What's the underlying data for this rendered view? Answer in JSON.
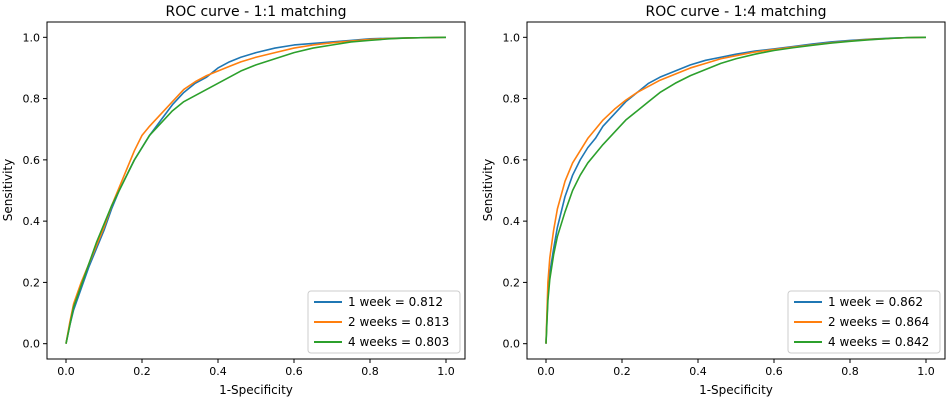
{
  "chart_data": [
    {
      "type": "line",
      "title": "ROC curve - 1:1 matching",
      "xlabel": "1-Specificity",
      "ylabel": "Sensitivity",
      "xlim": [
        -0.05,
        1.05
      ],
      "ylim": [
        -0.05,
        1.05
      ],
      "xticks": [
        0.0,
        0.2,
        0.4,
        0.6,
        0.8,
        1.0
      ],
      "xtick_labels": [
        "0.0",
        "0.2",
        "0.4",
        "0.6",
        "0.8",
        "1.0"
      ],
      "yticks": [
        0.0,
        0.2,
        0.4,
        0.6,
        0.8,
        1.0
      ],
      "ytick_labels": [
        "0.0",
        "0.2",
        "0.4",
        "0.6",
        "0.8",
        "1.0"
      ],
      "grid": false,
      "legend_position": "lower-right",
      "series": [
        {
          "name": "1 week = 0.812",
          "color": "#1f77b4",
          "x": [
            0,
            0.01,
            0.02,
            0.04,
            0.06,
            0.08,
            0.1,
            0.12,
            0.14,
            0.16,
            0.18,
            0.2,
            0.22,
            0.25,
            0.28,
            0.31,
            0.34,
            0.37,
            0.4,
            0.43,
            0.46,
            0.5,
            0.55,
            0.6,
            0.65,
            0.7,
            0.75,
            0.8,
            0.85,
            0.9,
            0.95,
            1.0
          ],
          "y": [
            0,
            0.06,
            0.11,
            0.18,
            0.25,
            0.31,
            0.37,
            0.44,
            0.5,
            0.55,
            0.6,
            0.64,
            0.68,
            0.73,
            0.78,
            0.82,
            0.85,
            0.87,
            0.9,
            0.92,
            0.935,
            0.95,
            0.965,
            0.975,
            0.98,
            0.985,
            0.99,
            0.995,
            0.997,
            0.998,
            0.999,
            1.0
          ]
        },
        {
          "name": "2 weeks = 0.813",
          "color": "#ff7f0e",
          "x": [
            0,
            0.01,
            0.02,
            0.04,
            0.06,
            0.08,
            0.1,
            0.12,
            0.14,
            0.16,
            0.18,
            0.2,
            0.22,
            0.25,
            0.28,
            0.31,
            0.34,
            0.37,
            0.4,
            0.43,
            0.46,
            0.5,
            0.55,
            0.6,
            0.65,
            0.7,
            0.75,
            0.8,
            0.85,
            0.9,
            0.95,
            1.0
          ],
          "y": [
            0,
            0.07,
            0.13,
            0.2,
            0.26,
            0.32,
            0.38,
            0.45,
            0.51,
            0.57,
            0.63,
            0.68,
            0.71,
            0.75,
            0.79,
            0.83,
            0.855,
            0.875,
            0.89,
            0.905,
            0.92,
            0.935,
            0.95,
            0.965,
            0.975,
            0.982,
            0.988,
            0.993,
            0.996,
            0.998,
            0.999,
            1.0
          ]
        },
        {
          "name": "4 weeks = 0.803",
          "color": "#2ca02c",
          "x": [
            0,
            0.01,
            0.02,
            0.04,
            0.06,
            0.08,
            0.1,
            0.12,
            0.14,
            0.16,
            0.18,
            0.2,
            0.22,
            0.25,
            0.28,
            0.31,
            0.34,
            0.37,
            0.4,
            0.43,
            0.46,
            0.5,
            0.55,
            0.6,
            0.65,
            0.7,
            0.75,
            0.8,
            0.85,
            0.9,
            0.95,
            1.0
          ],
          "y": [
            0,
            0.06,
            0.12,
            0.19,
            0.26,
            0.33,
            0.39,
            0.45,
            0.5,
            0.55,
            0.6,
            0.64,
            0.68,
            0.72,
            0.76,
            0.79,
            0.81,
            0.83,
            0.85,
            0.87,
            0.89,
            0.91,
            0.93,
            0.95,
            0.965,
            0.975,
            0.985,
            0.99,
            0.995,
            0.998,
            0.999,
            1.0
          ]
        }
      ]
    },
    {
      "type": "line",
      "title": "ROC curve - 1:4 matching",
      "xlabel": "1-Specificity",
      "ylabel": "Sensitivity",
      "xlim": [
        -0.05,
        1.05
      ],
      "ylim": [
        -0.05,
        1.05
      ],
      "xticks": [
        0.0,
        0.2,
        0.4,
        0.6,
        0.8,
        1.0
      ],
      "xtick_labels": [
        "0.0",
        "0.2",
        "0.4",
        "0.6",
        "0.8",
        "1.0"
      ],
      "yticks": [
        0.0,
        0.2,
        0.4,
        0.6,
        0.8,
        1.0
      ],
      "ytick_labels": [
        "0.0",
        "0.2",
        "0.4",
        "0.6",
        "0.8",
        "1.0"
      ],
      "grid": false,
      "legend_position": "lower-right",
      "series": [
        {
          "name": "1 week = 0.862",
          "color": "#1f77b4",
          "x": [
            0,
            0.005,
            0.01,
            0.02,
            0.03,
            0.05,
            0.07,
            0.09,
            0.11,
            0.13,
            0.15,
            0.18,
            0.21,
            0.24,
            0.27,
            0.3,
            0.34,
            0.38,
            0.42,
            0.46,
            0.5,
            0.55,
            0.6,
            0.65,
            0.7,
            0.75,
            0.8,
            0.85,
            0.9,
            0.95,
            1.0
          ],
          "y": [
            0,
            0.16,
            0.23,
            0.31,
            0.38,
            0.48,
            0.55,
            0.6,
            0.64,
            0.67,
            0.71,
            0.75,
            0.79,
            0.82,
            0.85,
            0.87,
            0.89,
            0.91,
            0.925,
            0.935,
            0.945,
            0.955,
            0.962,
            0.97,
            0.978,
            0.985,
            0.99,
            0.994,
            0.997,
            0.999,
            1.0
          ]
        },
        {
          "name": "2 weeks = 0.864",
          "color": "#ff7f0e",
          "x": [
            0,
            0.005,
            0.01,
            0.02,
            0.03,
            0.05,
            0.07,
            0.09,
            0.11,
            0.13,
            0.15,
            0.18,
            0.21,
            0.24,
            0.27,
            0.3,
            0.34,
            0.38,
            0.42,
            0.46,
            0.5,
            0.55,
            0.6,
            0.65,
            0.7,
            0.75,
            0.8,
            0.85,
            0.9,
            0.95,
            1.0
          ],
          "y": [
            0,
            0.2,
            0.28,
            0.37,
            0.44,
            0.53,
            0.59,
            0.63,
            0.67,
            0.7,
            0.73,
            0.765,
            0.795,
            0.82,
            0.84,
            0.86,
            0.88,
            0.9,
            0.915,
            0.93,
            0.94,
            0.952,
            0.96,
            0.968,
            0.975,
            0.982,
            0.988,
            0.993,
            0.996,
            0.999,
            1.0
          ]
        },
        {
          "name": "4 weeks = 0.842",
          "color": "#2ca02c",
          "x": [
            0,
            0.005,
            0.01,
            0.02,
            0.03,
            0.05,
            0.07,
            0.09,
            0.11,
            0.13,
            0.15,
            0.18,
            0.21,
            0.24,
            0.27,
            0.3,
            0.34,
            0.38,
            0.42,
            0.46,
            0.5,
            0.55,
            0.6,
            0.65,
            0.7,
            0.75,
            0.8,
            0.85,
            0.9,
            0.95,
            1.0
          ],
          "y": [
            0,
            0.14,
            0.21,
            0.29,
            0.35,
            0.43,
            0.5,
            0.55,
            0.59,
            0.62,
            0.65,
            0.69,
            0.73,
            0.76,
            0.79,
            0.82,
            0.85,
            0.875,
            0.895,
            0.915,
            0.93,
            0.945,
            0.957,
            0.966,
            0.974,
            0.981,
            0.987,
            0.992,
            0.996,
            0.999,
            1.0
          ]
        }
      ]
    }
  ]
}
